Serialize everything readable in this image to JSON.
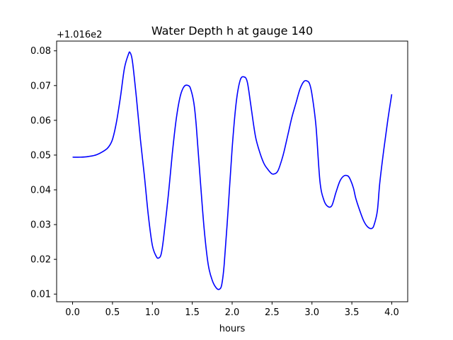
{
  "chart_data": {
    "type": "line",
    "title": "Water Depth h at gauge 140",
    "xlabel": "hours",
    "ylabel": "",
    "offset_label": "+1.016e2",
    "xlim": [
      -0.2,
      4.2
    ],
    "ylim": [
      0.0078,
      0.0828
    ],
    "x_ticks": [
      0.0,
      0.5,
      1.0,
      1.5,
      2.0,
      2.5,
      3.0,
      3.5,
      4.0
    ],
    "x_tick_labels": [
      "0.0",
      "0.5",
      "1.0",
      "1.5",
      "2.0",
      "2.5",
      "3.0",
      "3.5",
      "4.0"
    ],
    "y_ticks": [
      0.01,
      0.02,
      0.03,
      0.04,
      0.05,
      0.06,
      0.07,
      0.08
    ],
    "y_tick_labels": [
      "0.01",
      "0.02",
      "0.03",
      "0.04",
      "0.05",
      "0.06",
      "0.07",
      "0.08"
    ],
    "grid": false,
    "line_color": "#0000ff",
    "series": [
      {
        "x": [
          0.0,
          0.1,
          0.2,
          0.3,
          0.4,
          0.45,
          0.5,
          0.55,
          0.6,
          0.65,
          0.7,
          0.72,
          0.75,
          0.8,
          0.85,
          0.9,
          0.95,
          1.0,
          1.05,
          1.08,
          1.11,
          1.14,
          1.2,
          1.25,
          1.3,
          1.35,
          1.4,
          1.45,
          1.48,
          1.52,
          1.55,
          1.6,
          1.65,
          1.7,
          1.75,
          1.8,
          1.84,
          1.87,
          1.9,
          1.95,
          2.0,
          2.05,
          2.1,
          2.15,
          2.19,
          2.23,
          2.27,
          2.3,
          2.35,
          2.4,
          2.45,
          2.5,
          2.55,
          2.58,
          2.62,
          2.65,
          2.7,
          2.75,
          2.8,
          2.85,
          2.9,
          2.94,
          2.97,
          3.0,
          3.05,
          3.1,
          3.15,
          3.2,
          3.25,
          3.3,
          3.35,
          3.4,
          3.45,
          3.48,
          3.52,
          3.55,
          3.6,
          3.65,
          3.7,
          3.75,
          3.78,
          3.82,
          3.85,
          3.9,
          3.95,
          4.0
        ],
        "y": [
          0.0494,
          0.0494,
          0.0496,
          0.0501,
          0.0513,
          0.0523,
          0.0545,
          0.0595,
          0.0667,
          0.075,
          0.079,
          0.0795,
          0.077,
          0.0665,
          0.0545,
          0.044,
          0.0325,
          0.024,
          0.0208,
          0.0204,
          0.0215,
          0.026,
          0.0385,
          0.0505,
          0.0605,
          0.067,
          0.0698,
          0.07,
          0.069,
          0.065,
          0.0585,
          0.043,
          0.0285,
          0.0185,
          0.014,
          0.0118,
          0.0114,
          0.0128,
          0.0185,
          0.0345,
          0.052,
          0.065,
          0.0715,
          0.0725,
          0.071,
          0.065,
          0.0585,
          0.0545,
          0.0505,
          0.0475,
          0.0458,
          0.0446,
          0.0448,
          0.0458,
          0.0485,
          0.051,
          0.056,
          0.061,
          0.065,
          0.069,
          0.0712,
          0.0713,
          0.0705,
          0.0675,
          0.0585,
          0.0425,
          0.037,
          0.0352,
          0.0355,
          0.0392,
          0.0425,
          0.044,
          0.044,
          0.043,
          0.0405,
          0.0375,
          0.034,
          0.031,
          0.0293,
          0.0289,
          0.03,
          0.034,
          0.042,
          0.0515,
          0.06,
          0.0675
        ]
      }
    ]
  }
}
